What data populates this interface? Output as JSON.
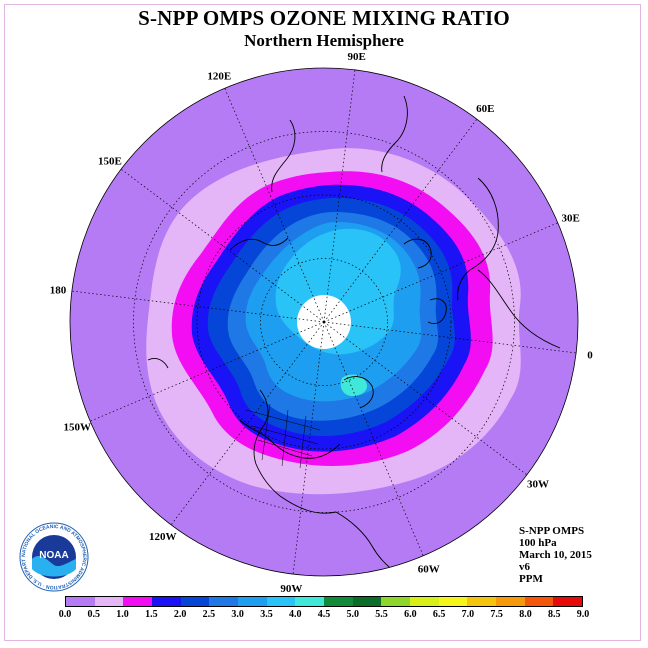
{
  "title": "S-NPP OMPS OZONE MIXING RATIO",
  "subtitle": "Northern Hemisphere",
  "meridian_labels": [
    {
      "text": "90E",
      "lon": 90
    },
    {
      "text": "60E",
      "lon": 60
    },
    {
      "text": "30E",
      "lon": 30
    },
    {
      "text": "0",
      "lon": 0
    },
    {
      "text": "30W",
      "lon": -30
    },
    {
      "text": "60W",
      "lon": -60
    },
    {
      "text": "90W",
      "lon": -90
    },
    {
      "text": "120W",
      "lon": -120
    },
    {
      "text": "150W",
      "lon": -150
    },
    {
      "text": "180",
      "lon": 180
    },
    {
      "text": "150E",
      "lon": 150
    },
    {
      "text": "120E",
      "lon": 120
    }
  ],
  "info": {
    "instrument": "S-NPP OMPS",
    "level": "100 hPa",
    "date": "March 10, 2015",
    "version": "v6",
    "units": "PPM"
  },
  "logo": {
    "text": "NOAA",
    "ring_text": "NATIONAL OCEANIC AND ATMOSPHERIC ADMINISTRATION · U.S. DEPARTMENT OF COMMERCE"
  },
  "colorbar": {
    "ticks": [
      "0.0",
      "0.5",
      "1.0",
      "1.5",
      "2.0",
      "2.5",
      "3.0",
      "3.5",
      "4.0",
      "4.5",
      "5.0",
      "5.5",
      "6.0",
      "6.5",
      "7.0",
      "7.5",
      "8.0",
      "8.5",
      "9.0"
    ],
    "colors": [
      "#b57bf5",
      "#e4b5f7",
      "#f20df2",
      "#1a13f5",
      "#0546d8",
      "#1e78e6",
      "#1e9ef0",
      "#29c3f7",
      "#3fe8d8",
      "#118a3a",
      "#0a6e2a",
      "#8ed62a",
      "#d8f018",
      "#f5f51a",
      "#f5c40e",
      "#f59a0a",
      "#f5570a",
      "#e60a0a",
      "#8a5a3a"
    ]
  },
  "map_colors": {
    "outer": "#b57bf5",
    "band_0_5": "#e4b5f7",
    "band_1_0": "#f20df2",
    "band_1_5": "#1a13f5",
    "band_2_0": "#0546d8",
    "band_2_5": "#1e78e6",
    "band_3_0": "#1e9ef0",
    "band_3_5": "#29c3f7",
    "band_4_0": "#3fe8d8",
    "no_data": "#ffffff"
  }
}
